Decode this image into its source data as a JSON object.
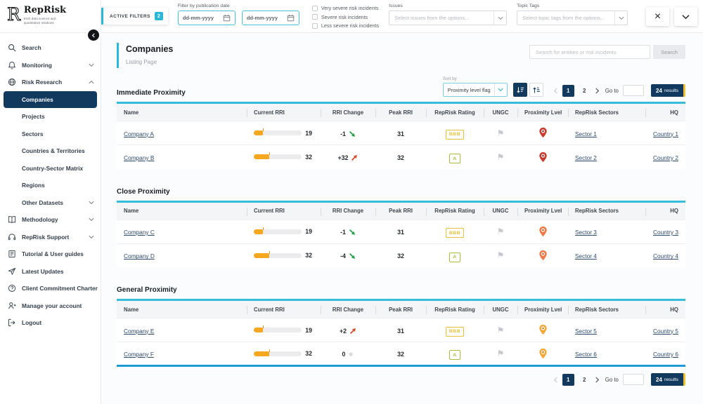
{
  "brand": {
    "name": "RepRisk",
    "tagline_line1": "ESG data science and",
    "tagline_line2": "quantitative solutions"
  },
  "topbar": {
    "active_filters_label": "ACTIVE FILTERS",
    "active_filters_count": "2",
    "publication_date_label": "Filter by publication date",
    "date_from_placeholder": "dd-mm-yyyy",
    "date_to_placeholder": "dd-mm-yyyy",
    "severity_options": [
      "Very severe risk incidents",
      "Severe risk incidents",
      "Less severe risk incidents"
    ],
    "issues_label": "Issues",
    "issues_placeholder": "Select issues from the options...",
    "topic_tags_label": "Topic Tags",
    "topic_tags_placeholder": "Select topic tags from the options..."
  },
  "sidebar": {
    "items": [
      {
        "label": "Search",
        "icon": "search"
      },
      {
        "label": "Monitoring",
        "icon": "bell",
        "chevron": "down"
      },
      {
        "label": "Risk Research",
        "icon": "globe",
        "chevron": "up"
      },
      {
        "label": "Companies",
        "sub": true,
        "active": true
      },
      {
        "label": "Projects",
        "sub": true
      },
      {
        "label": "Sectors",
        "sub": true
      },
      {
        "label": "Countries & Territories",
        "sub": true
      },
      {
        "label": "Country-Sector Matrix",
        "sub": true
      },
      {
        "label": "Regions",
        "sub": true
      },
      {
        "label": "Other Datasets",
        "sub": true,
        "chevron": "down"
      },
      {
        "label": "Methodology",
        "icon": "book",
        "chevron": "down"
      },
      {
        "label": "RepRisk Support",
        "icon": "headset",
        "chevron": "down"
      },
      {
        "label": "Tutorial & User guides",
        "icon": "guide"
      },
      {
        "label": "Latest Updates",
        "icon": "send"
      },
      {
        "label": "Client Commitment Charter",
        "icon": "question"
      },
      {
        "label": "Manage your account",
        "icon": "user"
      },
      {
        "label": "Logout",
        "icon": "logout"
      }
    ]
  },
  "page_header": {
    "title": "Companies",
    "subtitle": "Listing Page",
    "search_placeholder": "Search for entities or risk incidents",
    "search_button_label": "Search"
  },
  "sort": {
    "label": "Sort by",
    "selected": "Proximity level flag"
  },
  "pagination": {
    "pages": [
      "1",
      "2"
    ],
    "active_page": "1",
    "goto_label": "Go to",
    "results_count": "24",
    "results_label": "results"
  },
  "table_columns": [
    "Name",
    "Current RRI",
    "RRI Change",
    "Peak RRI",
    "RepRisk Rating",
    "UNGC",
    "Proximity Lvel",
    "RepRisk Sectors",
    "HQ"
  ],
  "rri_scale_max": 100,
  "tables": [
    {
      "section_title": "Immediate Proximity",
      "pin_color": "#C63D2F",
      "pin_core": "#8F241B",
      "rows": [
        {
          "name": "Company A",
          "current_rri": 19,
          "rri_change": "-1",
          "change_direction": "down",
          "peak_rri": 31,
          "rating": "BBB",
          "rating_color": "#E5C13D",
          "sector": "Sector 1",
          "hq": "Country 1"
        },
        {
          "name": "Company B",
          "current_rri": 32,
          "rri_change": "+32",
          "change_direction": "up",
          "peak_rri": 32,
          "rating": "A",
          "rating_color": "#A3BE3C",
          "sector": "Sector 2",
          "hq": "Country 2"
        }
      ]
    },
    {
      "section_title": "Close Proximity",
      "pin_color": "#EE7B47",
      "pin_core": "#C2572B",
      "rows": [
        {
          "name": "Company C",
          "current_rri": 19,
          "rri_change": "-1",
          "change_direction": "down",
          "peak_rri": 31,
          "rating": "BBB",
          "rating_color": "#E5C13D",
          "sector": "Sector 3",
          "hq": "Country 3"
        },
        {
          "name": "Company D",
          "current_rri": 32,
          "rri_change": "-4",
          "change_direction": "down",
          "peak_rri": 32,
          "rating": "A",
          "rating_color": "#A3BE3C",
          "sector": "Sector 4",
          "hq": "Country 4"
        }
      ]
    },
    {
      "section_title": "General Proximity",
      "pin_color": "#F3A93C",
      "pin_core": "#C47F14",
      "rows": [
        {
          "name": "Company E",
          "current_rri": 19,
          "rri_change": "+2",
          "change_direction": "up",
          "peak_rri": 31,
          "rating": "BBB",
          "rating_color": "#E5C13D",
          "sector": "Sector 5",
          "hq": "Country 5"
        },
        {
          "name": "Company F",
          "current_rri": 32,
          "rri_change": "0",
          "change_direction": "none",
          "peak_rri": 32,
          "rating": "A",
          "rating_color": "#A3BE3C",
          "sector": "Sector 6",
          "hq": "Country 6"
        }
      ]
    }
  ],
  "colors": {
    "accent_cyan": "#2CB7D6",
    "navy": "#123A5E",
    "bar_orange": "#F5A71F",
    "increase_red": "#D9492B",
    "decrease_green": "#27A24A",
    "flag_grey": "#C6C9CE",
    "results_yellow": "#F0C12F",
    "table_bottom_blue": "#1D9AD3"
  }
}
